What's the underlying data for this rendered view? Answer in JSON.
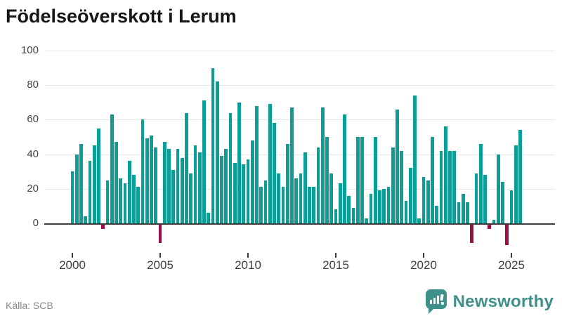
{
  "title": "Födelseöverskott i Lerum",
  "source_label": "Källa: SCB",
  "brand": {
    "name": "Newsworthy",
    "icon": "bar-chart-speech-bubble-icon",
    "color": "#3e918b"
  },
  "chart_data": {
    "type": "bar",
    "title": "Födelseöverskott i Lerum",
    "x_unit": "quarter",
    "start": "2000 Q1",
    "end": "2025 Q3",
    "xlabel": "",
    "ylabel": "",
    "ylim": [
      -15,
      100
    ],
    "y_ticks": [
      0,
      20,
      40,
      60,
      80,
      100
    ],
    "x_tick_labels": [
      "2000",
      "2005",
      "2010",
      "2015",
      "2020",
      "2025"
    ],
    "grid": "horizontal",
    "legend": "none",
    "colors": {
      "positive": "#0a9e96",
      "negative": "#a00d47"
    },
    "series": [
      {
        "name": "Födelseöverskott",
        "years": [
          {
            "year": 2000,
            "values": [
              30,
              40,
              46,
              4
            ]
          },
          {
            "year": 2001,
            "values": [
              36,
              45,
              55,
              -3
            ]
          },
          {
            "year": 2002,
            "values": [
              25,
              63,
              47,
              26
            ]
          },
          {
            "year": 2003,
            "values": [
              23,
              36,
              28,
              21
            ]
          },
          {
            "year": 2004,
            "values": [
              60,
              49,
              51,
              44
            ]
          },
          {
            "year": 2005,
            "values": [
              -11,
              47,
              43,
              31
            ]
          },
          {
            "year": 2006,
            "values": [
              43,
              38,
              64,
              29
            ]
          },
          {
            "year": 2007,
            "values": [
              45,
              41,
              71,
              6
            ]
          },
          {
            "year": 2008,
            "values": [
              90,
              82,
              39,
              43
            ]
          },
          {
            "year": 2009,
            "values": [
              64,
              35,
              70,
              34
            ]
          },
          {
            "year": 2010,
            "values": [
              37,
              48,
              68,
              21
            ]
          },
          {
            "year": 2011,
            "values": [
              25,
              69,
              58,
              29
            ]
          },
          {
            "year": 2012,
            "values": [
              21,
              46,
              67,
              26
            ]
          },
          {
            "year": 2013,
            "values": [
              29,
              41,
              21,
              21
            ]
          },
          {
            "year": 2014,
            "values": [
              44,
              67,
              50,
              29
            ]
          },
          {
            "year": 2015,
            "values": [
              8,
              23,
              63,
              16
            ]
          },
          {
            "year": 2016,
            "values": [
              9,
              50,
              50,
              3
            ]
          },
          {
            "year": 2017,
            "values": [
              17,
              50,
              19,
              20
            ]
          },
          {
            "year": 2018,
            "values": [
              21,
              44,
              66,
              42
            ]
          },
          {
            "year": 2019,
            "values": [
              13,
              32,
              74,
              3
            ]
          },
          {
            "year": 2020,
            "values": [
              27,
              25,
              50,
              10
            ]
          },
          {
            "year": 2021,
            "values": [
              42,
              56,
              42,
              42
            ]
          },
          {
            "year": 2022,
            "values": [
              12,
              17,
              12,
              -11
            ]
          },
          {
            "year": 2023,
            "values": [
              29,
              46,
              28,
              -3
            ]
          },
          {
            "year": 2024,
            "values": [
              2,
              40,
              24,
              -12
            ]
          },
          {
            "year": 2025,
            "values": [
              19,
              45,
              54
            ]
          }
        ]
      }
    ]
  }
}
